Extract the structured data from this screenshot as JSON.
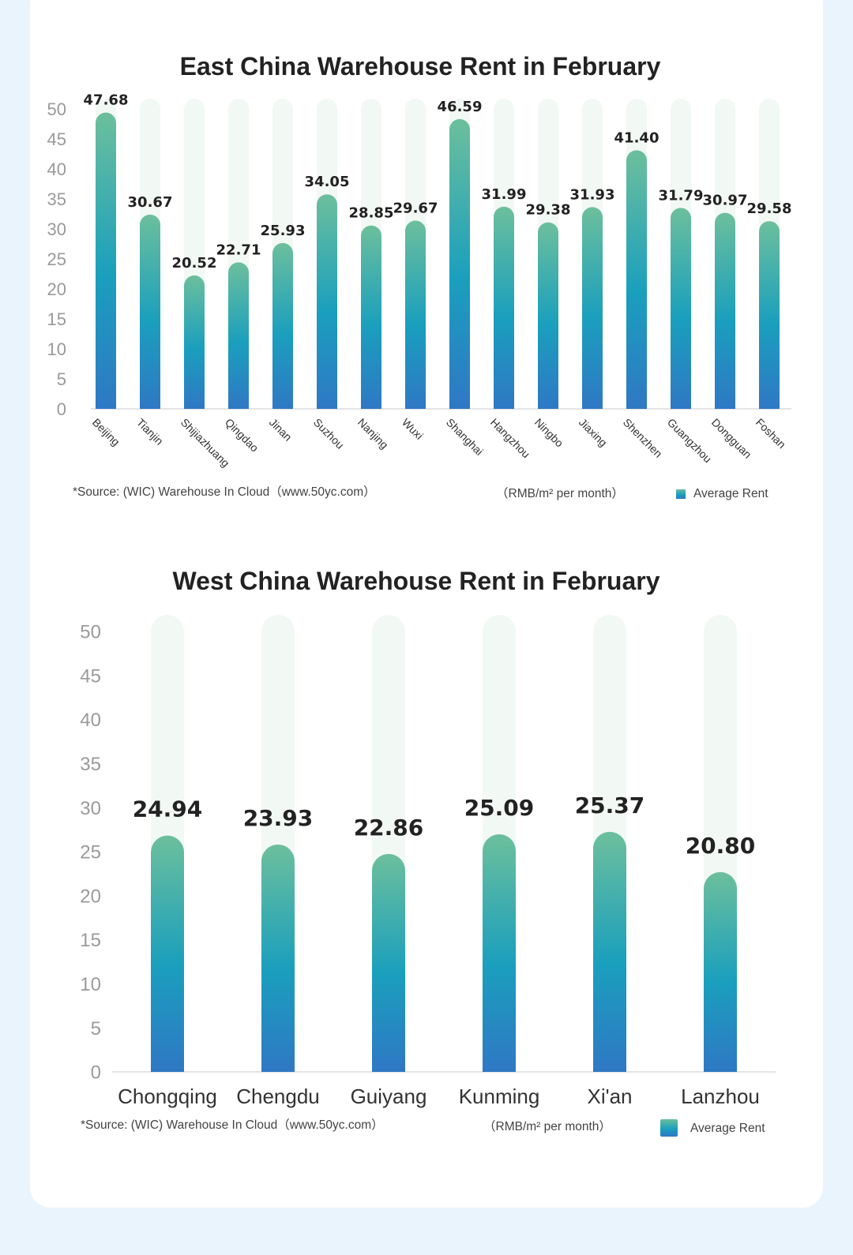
{
  "colors": {
    "page_bg": "#eaf4fd",
    "card_bg": "#ffffff",
    "bar_top": "#6cbf9c",
    "bar_mid": "#1a9fbd",
    "bar_bottom": "#2f78c4",
    "track": "#f3f8f5"
  },
  "chart_data": [
    {
      "type": "bar",
      "title": "East China Warehouse Rent in February",
      "categories": [
        "Beijing",
        "Tianjin",
        "Shijiazhuang",
        "Qingdao",
        "Jinan",
        "Suzhou",
        "Nanjing",
        "Wuxi",
        "Shanghai",
        "Hangzhou",
        "Ningbo",
        "Jiaxing",
        "Shenzhen",
        "Guangzhou",
        "Dongguan",
        "Foshan"
      ],
      "values": [
        47.68,
        30.67,
        20.52,
        22.71,
        25.93,
        34.05,
        28.85,
        29.67,
        46.59,
        31.99,
        29.38,
        31.93,
        41.4,
        31.79,
        30.97,
        29.58
      ],
      "value_labels": [
        "47.68",
        "30.67",
        "20.52",
        "22.71",
        "25.93",
        "34.05",
        "28.85",
        "29.67",
        "46.59",
        "31.99",
        "29.38",
        "31.93",
        "41.40",
        "31.79",
        "30.97",
        "29.58"
      ],
      "yticks": [
        "0",
        "5",
        "10",
        "15",
        "20",
        "25",
        "30",
        "35",
        "40",
        "45",
        "50"
      ],
      "ylim": [
        0,
        50
      ],
      "xlabel": "",
      "ylabel": "",
      "source": "*Source: (WIC) Warehouse In Cloud（www.50yc.com）",
      "unit": "（RMB/m² per month）",
      "legend": "Average Rent"
    },
    {
      "type": "bar",
      "title": "West China Warehouse Rent in February",
      "categories": [
        "Chongqing",
        "Chengdu",
        "Guiyang",
        "Kunming",
        "Xi'an",
        "Lanzhou"
      ],
      "values": [
        24.94,
        23.93,
        22.86,
        25.09,
        25.37,
        20.8
      ],
      "value_labels": [
        "24.94",
        "23.93",
        "22.86",
        "25.09",
        "25.37",
        "20.80"
      ],
      "yticks": [
        "0",
        "5",
        "10",
        "15",
        "20",
        "25",
        "30",
        "35",
        "40",
        "45",
        "50"
      ],
      "ylim": [
        0,
        50
      ],
      "xlabel": "",
      "ylabel": "",
      "source": "*Source: (WIC) Warehouse In Cloud（www.50yc.com）",
      "unit": "（RMB/m² per month）",
      "legend": "Average Rent"
    }
  ]
}
